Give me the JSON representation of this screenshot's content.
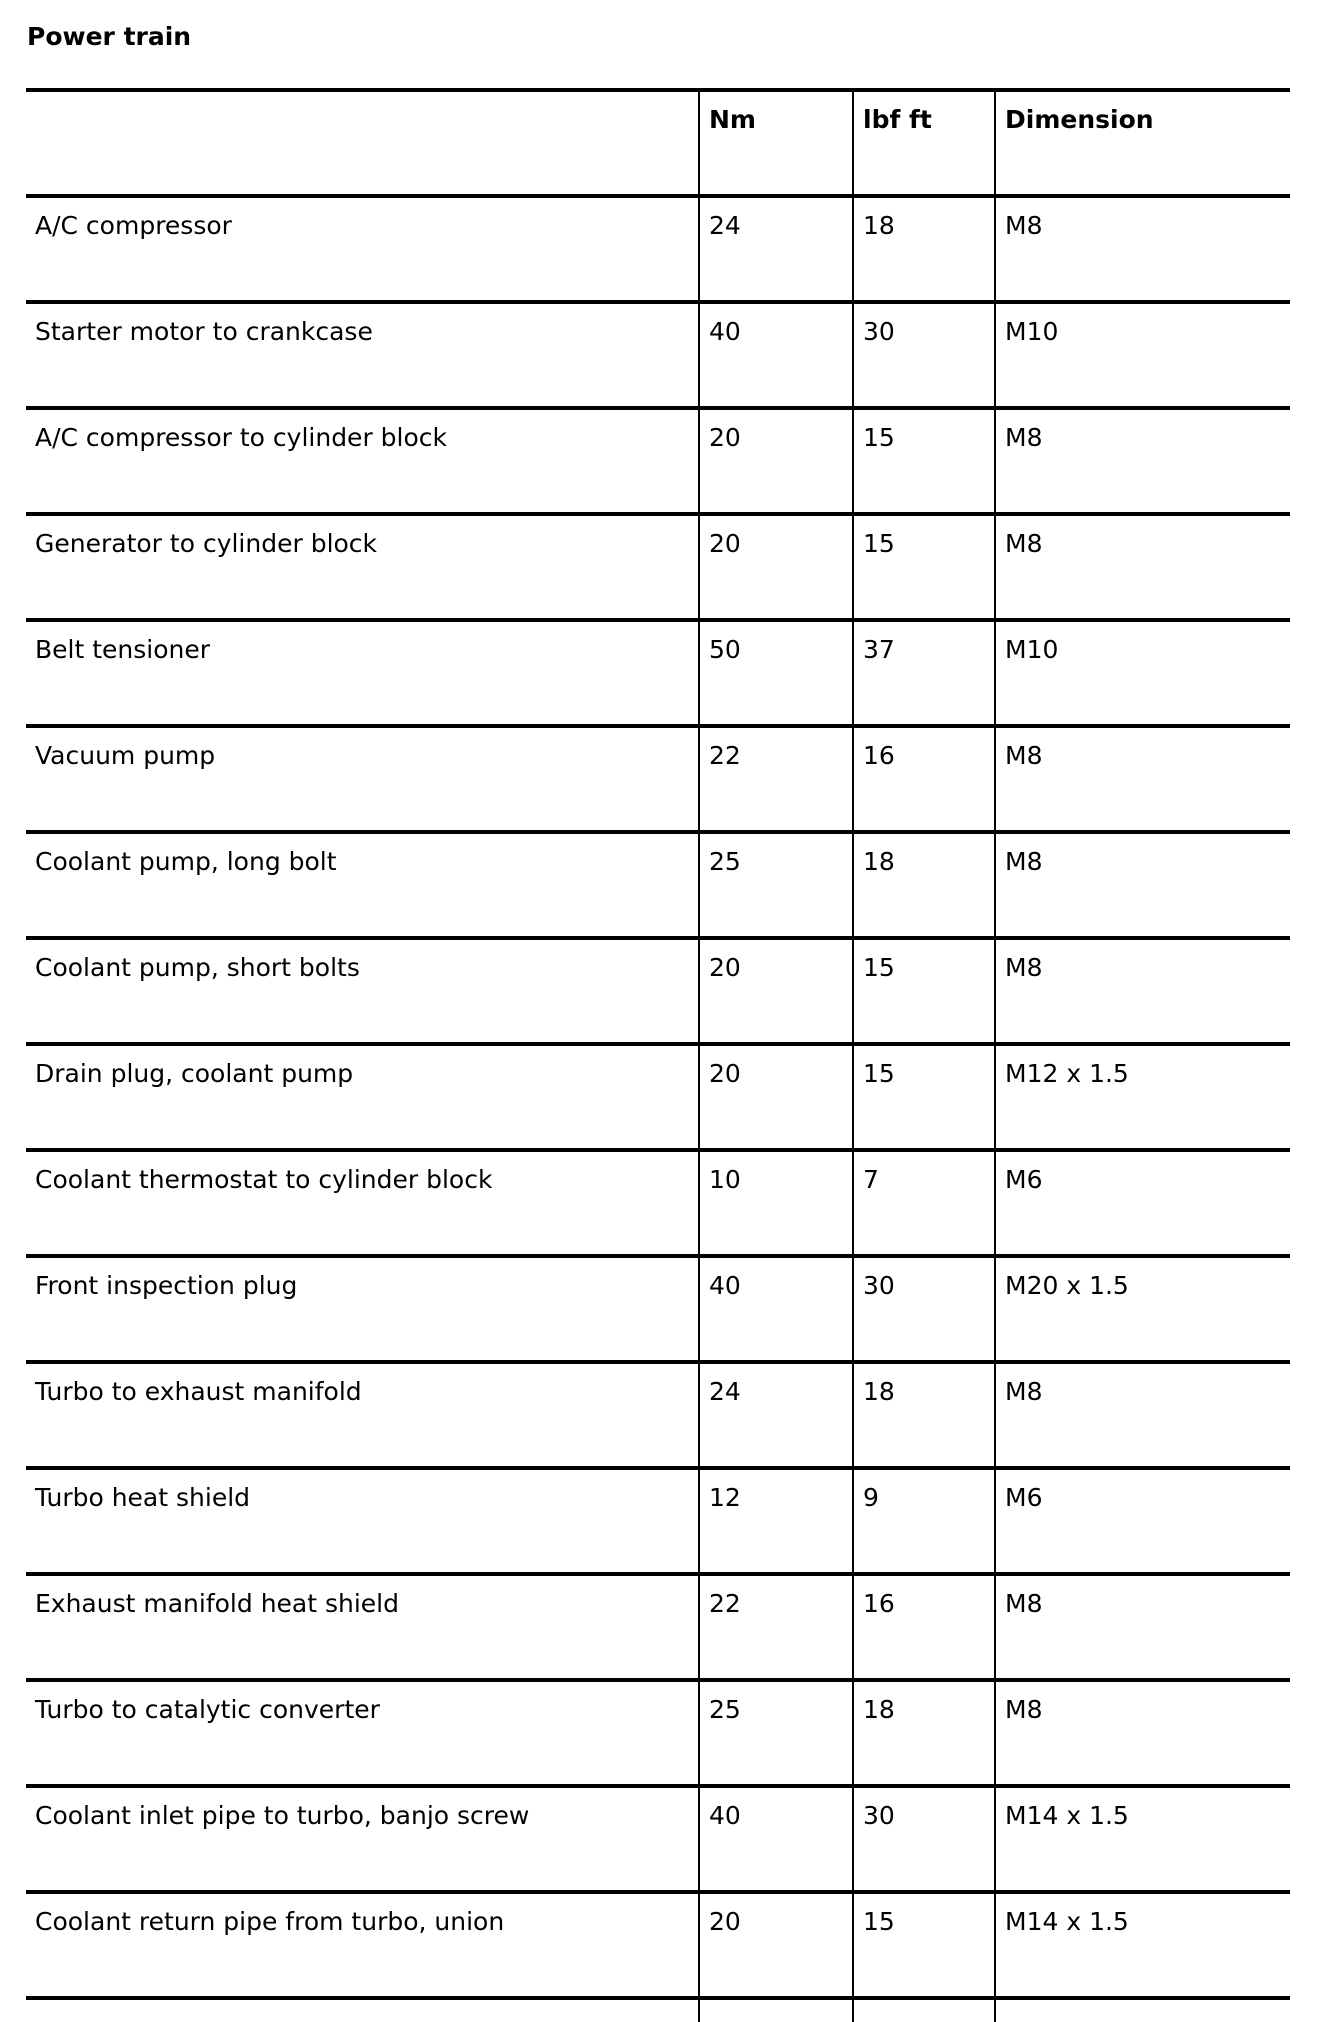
{
  "title": "Power train",
  "columns": [
    "",
    "Nm",
    "lbf ft",
    "Dimension"
  ],
  "rows": [
    [
      "A/C compressor",
      "24",
      "18",
      "M8"
    ],
    [
      "Starter motor to crankcase",
      "40",
      "30",
      "M10"
    ],
    [
      "A/C compressor to cylinder block",
      "20",
      "15",
      "M8"
    ],
    [
      "Generator to cylinder block",
      "20",
      "15",
      "M8"
    ],
    [
      "Belt tensioner",
      "50",
      "37",
      "M10"
    ],
    [
      "Vacuum pump",
      "22",
      "16",
      "M8"
    ],
    [
      "Coolant pump, long bolt",
      "25",
      "18",
      "M8"
    ],
    [
      "Coolant pump, short bolts",
      "20",
      "15",
      "M8"
    ],
    [
      "Drain plug, coolant pump",
      "20",
      "15",
      "M12 x 1.5"
    ],
    [
      "Coolant thermostat to cylinder block",
      "10",
      "7",
      "M6"
    ],
    [
      "Front inspection plug",
      "40",
      "30",
      "M20 x 1.5"
    ],
    [
      "Turbo to exhaust manifold",
      "24",
      "18",
      "M8"
    ],
    [
      "Turbo heat shield",
      "12",
      "9",
      "M6"
    ],
    [
      "Exhaust manifold heat shield",
      "22",
      "16",
      "M8"
    ],
    [
      "Turbo to catalytic converter",
      "25",
      "18",
      "M8"
    ],
    [
      "Coolant inlet pipe to turbo, banjo screw",
      "40",
      "30",
      "M14 x 1.5"
    ],
    [
      "Coolant return pipe from turbo, union",
      "20",
      "15",
      "M14 x 1.5"
    ]
  ]
}
